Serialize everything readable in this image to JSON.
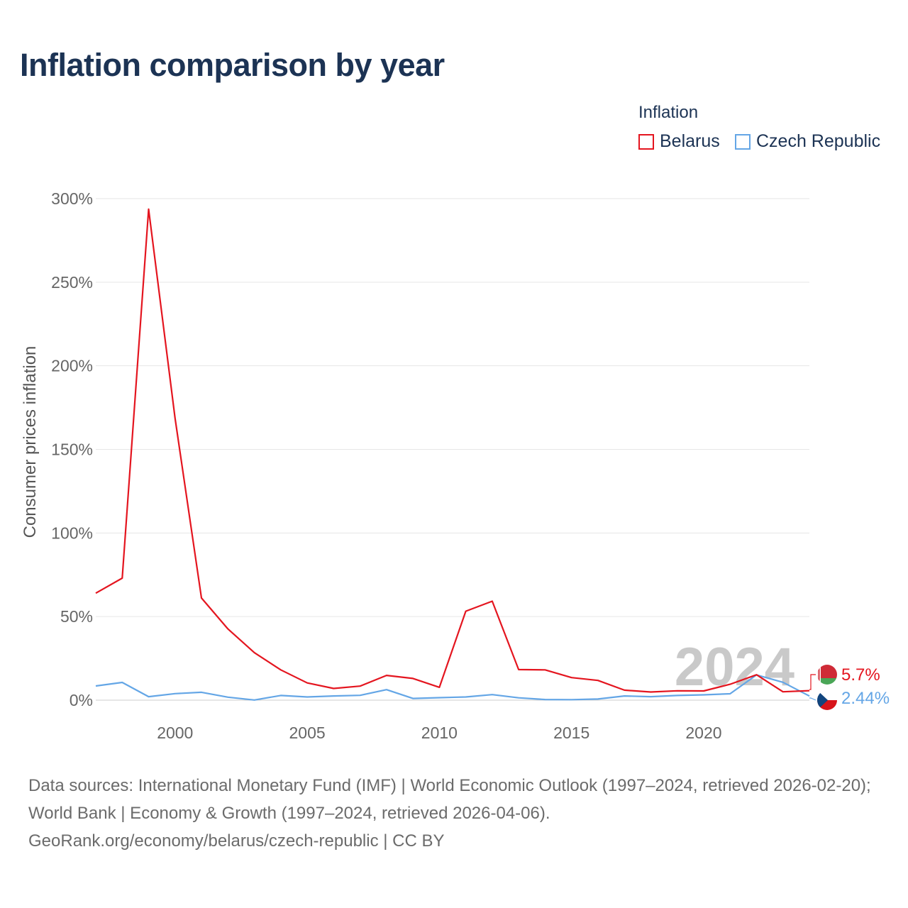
{
  "title": "Inflation comparison by year",
  "legend": {
    "title": "Inflation",
    "items": [
      {
        "label": "Belarus",
        "color": "#e4151f"
      },
      {
        "label": "Czech Republic",
        "color": "#64a6e6"
      }
    ]
  },
  "year_watermark": "2024",
  "end_labels": {
    "belarus": "5.7%",
    "czech": "2.44%"
  },
  "flags": {
    "belarus": "belarus-flag-icon",
    "czech": "czech-flag-icon"
  },
  "footer": {
    "sources": "Data sources: International Monetary Fund (IMF) | World Economic Outlook (1997–2024, retrieved 2026-02-20); World Bank | Economy & Growth (1997–2024, retrieved 2026-04-06).",
    "credit": "GeoRank.org/economy/belarus/czech-republic | CC BY"
  },
  "chart_data": {
    "type": "line",
    "title": "Inflation comparison by year",
    "xlabel": "",
    "ylabel": "Consumer prices inflation",
    "x": [
      1997,
      1998,
      1999,
      2000,
      2001,
      2002,
      2003,
      2004,
      2005,
      2006,
      2007,
      2008,
      2009,
      2010,
      2011,
      2012,
      2013,
      2014,
      2015,
      2016,
      2017,
      2018,
      2019,
      2020,
      2021,
      2022,
      2023,
      2024
    ],
    "series": [
      {
        "name": "Belarus",
        "color": "#e4151f",
        "values": [
          64.0,
          73.0,
          293.7,
          168.6,
          61.1,
          42.6,
          28.4,
          18.1,
          10.3,
          7.0,
          8.4,
          14.8,
          13.0,
          7.7,
          53.2,
          59.2,
          18.3,
          18.1,
          13.5,
          11.8,
          6.0,
          4.9,
          5.6,
          5.5,
          9.5,
          15.2,
          5.0,
          5.7
        ]
      },
      {
        "name": "Czech Republic",
        "color": "#64a6e6",
        "values": [
          8.5,
          10.6,
          2.1,
          3.9,
          4.7,
          1.8,
          0.1,
          2.8,
          1.9,
          2.5,
          2.9,
          6.3,
          1.0,
          1.5,
          1.9,
          3.3,
          1.4,
          0.4,
          0.3,
          0.7,
          2.5,
          2.1,
          2.8,
          3.2,
          3.8,
          15.1,
          10.7,
          2.44
        ]
      }
    ],
    "xlim": [
      1997,
      2024
    ],
    "ylim": [
      0,
      300
    ],
    "yticks": [
      0,
      50,
      100,
      150,
      200,
      250,
      300
    ],
    "ytick_labels": [
      "0%",
      "50%",
      "100%",
      "150%",
      "200%",
      "250%",
      "300%"
    ],
    "xticks": [
      2000,
      2005,
      2010,
      2015,
      2020
    ],
    "xtick_labels": [
      "2000",
      "2005",
      "2010",
      "2015",
      "2020"
    ],
    "grid": true,
    "legend_position": "top-right"
  }
}
